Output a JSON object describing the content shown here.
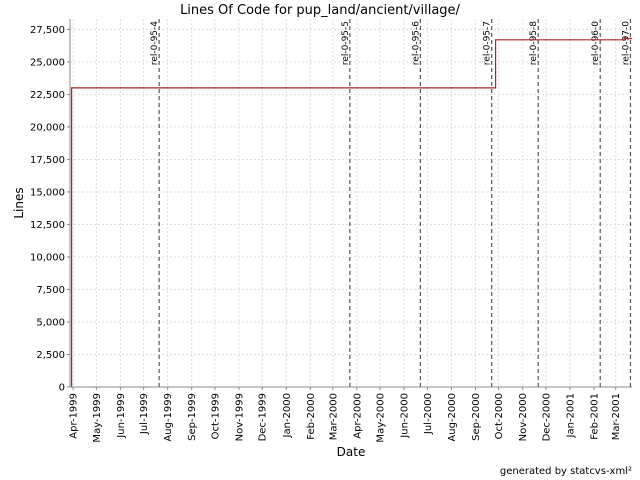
{
  "chart_data": {
    "type": "line",
    "title": "Lines Of Code for pup_land/ancient/village/",
    "xlabel": "Date",
    "ylabel": "Lines",
    "ylim": [
      0,
      28300
    ],
    "xlim": [
      "1999-03-28",
      "2001-03-22"
    ],
    "grid": true,
    "yticks": [
      0,
      2500,
      5000,
      7500,
      10000,
      12500,
      15000,
      17500,
      20000,
      22500,
      25000,
      27500
    ],
    "ytick_labels": [
      "0",
      "2,500",
      "5,000",
      "7,500",
      "10,000",
      "12,500",
      "15,000",
      "17,500",
      "20,000",
      "22,500",
      "25,000",
      "27,500"
    ],
    "xticks": [
      {
        "date": "1999-04-01",
        "label": "Apr-1999"
      },
      {
        "date": "1999-05-01",
        "label": "May-1999"
      },
      {
        "date": "1999-06-01",
        "label": "Jun-1999"
      },
      {
        "date": "1999-07-01",
        "label": "Jul-1999"
      },
      {
        "date": "1999-08-01",
        "label": "Aug-1999"
      },
      {
        "date": "1999-09-01",
        "label": "Sep-1999"
      },
      {
        "date": "1999-10-01",
        "label": "Oct-1999"
      },
      {
        "date": "1999-11-01",
        "label": "Nov-1999"
      },
      {
        "date": "1999-12-01",
        "label": "Dec-1999"
      },
      {
        "date": "2000-01-01",
        "label": "Jan-2000"
      },
      {
        "date": "2000-02-01",
        "label": "Feb-2000"
      },
      {
        "date": "2000-03-01",
        "label": "Mar-2000"
      },
      {
        "date": "2000-04-01",
        "label": "Apr-2000"
      },
      {
        "date": "2000-05-01",
        "label": "May-2000"
      },
      {
        "date": "2000-06-01",
        "label": "Jun-2000"
      },
      {
        "date": "2000-07-01",
        "label": "Jul-2000"
      },
      {
        "date": "2000-08-01",
        "label": "Aug-2000"
      },
      {
        "date": "2000-09-01",
        "label": "Sep-2000"
      },
      {
        "date": "2000-10-01",
        "label": "Oct-2000"
      },
      {
        "date": "2000-11-01",
        "label": "Nov-2000"
      },
      {
        "date": "2000-12-01",
        "label": "Dec-2000"
      },
      {
        "date": "2001-01-01",
        "label": "Jan-2001"
      },
      {
        "date": "2001-02-01",
        "label": "Feb-2001"
      },
      {
        "date": "2001-03-01",
        "label": "Mar-2001"
      }
    ],
    "series": [
      {
        "color": "#b22222",
        "step": true,
        "points": [
          {
            "x": "1999-03-30",
            "y": 0
          },
          {
            "x": "1999-03-30",
            "y": 23000
          },
          {
            "x": "2000-09-27",
            "y": 23000
          },
          {
            "x": "2000-09-27",
            "y": 26700
          },
          {
            "x": "2001-03-12",
            "y": 26700
          },
          {
            "x": "2001-03-12",
            "y": 26800
          },
          {
            "x": "2001-03-22",
            "y": 26800
          }
        ]
      }
    ],
    "releases": [
      {
        "date": "1999-07-21",
        "label": "rel-0-95-4"
      },
      {
        "date": "2000-03-23",
        "label": "rel-0-95-5"
      },
      {
        "date": "2000-06-22",
        "label": "rel-0-95-6"
      },
      {
        "date": "2000-09-22",
        "label": "rel-0-95-7"
      },
      {
        "date": "2000-11-21",
        "label": "rel-0-95-8"
      },
      {
        "date": "2001-02-09",
        "label": "rel-0-96-0"
      },
      {
        "date": "2001-03-20",
        "label": "rel-0-97-0"
      }
    ],
    "colors": {
      "line": "#b22222",
      "grid": "#dddddd",
      "release": "#555555"
    }
  },
  "footer": "generated by statcvs-xml²"
}
